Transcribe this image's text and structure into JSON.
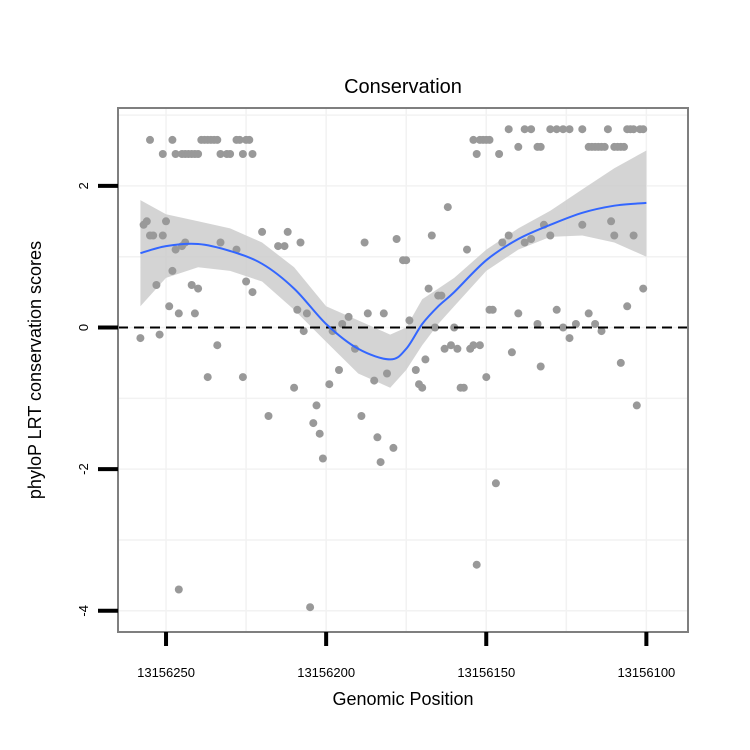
{
  "chart_data": {
    "type": "scatter",
    "title": "Conservation",
    "xlabel": "Genomic Position",
    "ylabel": "phyloP LRT conservation scores",
    "x_reversed": true,
    "xlim": [
      13156265,
      13156087
    ],
    "ylim": [
      -4.3,
      3.1
    ],
    "x_ticks": [
      13156250,
      13156200,
      13156150,
      13156100
    ],
    "x_tick_labels": [
      "13156250",
      "13156200",
      "13156150",
      "13156100"
    ],
    "y_ticks": [
      -4,
      -2,
      0,
      2
    ],
    "y_tick_labels": [
      "-4",
      "-2",
      "0",
      "2"
    ],
    "reference_line": {
      "y": 0,
      "style": "dashed",
      "color": "#000000"
    },
    "grid": true,
    "colors": {
      "points": "#999999",
      "smooth": "#3366ff",
      "band": "#cccccc",
      "panel_border": "#7f7f7f"
    },
    "smooth": {
      "x": [
        13156258,
        13156250,
        13156240,
        13156230,
        13156220,
        13156210,
        13156200,
        13156190,
        13156180,
        13156175,
        13156170,
        13156165,
        13156160,
        13156150,
        13156140,
        13156130,
        13156120,
        13156110,
        13156100
      ],
      "y": [
        1.05,
        1.15,
        1.18,
        1.08,
        0.9,
        0.55,
        0.05,
        -0.3,
        -0.45,
        -0.3,
        0.05,
        0.3,
        0.5,
        0.95,
        1.25,
        1.45,
        1.62,
        1.72,
        1.76
      ],
      "lower": [
        0.3,
        0.7,
        0.85,
        0.8,
        0.65,
        0.25,
        -0.2,
        -0.65,
        -0.85,
        -0.6,
        -0.25,
        0.05,
        0.3,
        0.8,
        1.1,
        1.28,
        1.3,
        1.2,
        1.0
      ],
      "upper": [
        1.8,
        1.6,
        1.5,
        1.4,
        1.2,
        0.85,
        0.3,
        0.1,
        -0.1,
        0.0,
        0.4,
        0.55,
        0.7,
        1.1,
        1.4,
        1.65,
        1.95,
        2.25,
        2.5
      ]
    },
    "points": [
      [
        13156257,
        1.45
      ],
      [
        13156256,
        1.5
      ],
      [
        13156255,
        1.3
      ],
      [
        13156254,
        1.3
      ],
      [
        13156251,
        1.3
      ],
      [
        13156253,
        0.6
      ],
      [
        13156252,
        -0.1
      ],
      [
        13156258,
        -0.15
      ],
      [
        13156250,
        1.5
      ],
      [
        13156249,
        0.3
      ],
      [
        13156248,
        0.8
      ],
      [
        13156247,
        1.1
      ],
      [
        13156246,
        0.2
      ],
      [
        13156245,
        1.15
      ],
      [
        13156244,
        1.2
      ],
      [
        13156242,
        0.6
      ],
      [
        13156241,
        0.2
      ],
      [
        13156240,
        0.55
      ],
      [
        13156237,
        -0.7
      ],
      [
        13156234,
        -0.25
      ],
      [
        13156233,
        1.2
      ],
      [
        13156228,
        1.1
      ],
      [
        13156226,
        -0.7
      ],
      [
        13156225,
        0.65
      ],
      [
        13156223,
        0.5
      ],
      [
        13156220,
        1.35
      ],
      [
        13156218,
        -1.25
      ],
      [
        13156215,
        1.15
      ],
      [
        13156213,
        1.15
      ],
      [
        13156212,
        1.35
      ],
      [
        13156210,
        -0.85
      ],
      [
        13156209,
        0.25
      ],
      [
        13156208,
        1.2
      ],
      [
        13156207,
        -0.05
      ],
      [
        13156206,
        0.2
      ],
      [
        13156204,
        -1.35
      ],
      [
        13156203,
        -1.1
      ],
      [
        13156202,
        -1.5
      ],
      [
        13156201,
        -1.85
      ],
      [
        13156199,
        -0.8
      ],
      [
        13156198,
        -0.05
      ],
      [
        13156196,
        -0.6
      ],
      [
        13156195,
        0.05
      ],
      [
        13156193,
        0.15
      ],
      [
        13156191,
        -0.3
      ],
      [
        13156189,
        -1.25
      ],
      [
        13156188,
        1.2
      ],
      [
        13156187,
        0.2
      ],
      [
        13156185,
        -0.75
      ],
      [
        13156184,
        -1.55
      ],
      [
        13156183,
        -1.9
      ],
      [
        13156182,
        0.2
      ],
      [
        13156181,
        -0.65
      ],
      [
        13156179,
        -1.7
      ],
      [
        13156178,
        1.25
      ],
      [
        13156176,
        0.95
      ],
      [
        13156175,
        0.95
      ],
      [
        13156174,
        0.1
      ],
      [
        13156172,
        -0.6
      ],
      [
        13156171,
        -0.8
      ],
      [
        13156170,
        -0.85
      ],
      [
        13156169,
        -0.45
      ],
      [
        13156168,
        0.55
      ],
      [
        13156167,
        1.3
      ],
      [
        13156166,
        0.0
      ],
      [
        13156165,
        0.45
      ],
      [
        13156164,
        0.45
      ],
      [
        13156163,
        -0.3
      ],
      [
        13156162,
        1.7
      ],
      [
        13156161,
        -0.25
      ],
      [
        13156160,
        0.0
      ],
      [
        13156159,
        -0.3
      ],
      [
        13156158,
        -0.85
      ],
      [
        13156157,
        -0.85
      ],
      [
        13156156,
        1.1
      ],
      [
        13156155,
        -0.3
      ],
      [
        13156154,
        -0.25
      ],
      [
        13156152,
        -0.25
      ],
      [
        13156150,
        -0.7
      ],
      [
        13156149,
        0.25
      ],
      [
        13156148,
        0.25
      ],
      [
        13156147,
        -2.2
      ],
      [
        13156145,
        1.2
      ],
      [
        13156143,
        1.3
      ],
      [
        13156142,
        -0.35
      ],
      [
        13156140,
        0.2
      ],
      [
        13156138,
        1.2
      ],
      [
        13156136,
        1.25
      ],
      [
        13156134,
        0.05
      ],
      [
        13156133,
        -0.55
      ],
      [
        13156132,
        1.45
      ],
      [
        13156130,
        1.3
      ],
      [
        13156128,
        0.25
      ],
      [
        13156126,
        0.0
      ],
      [
        13156124,
        -0.15
      ],
      [
        13156122,
        0.05
      ],
      [
        13156120,
        1.45
      ],
      [
        13156118,
        0.2
      ],
      [
        13156116,
        0.05
      ],
      [
        13156114,
        -0.05
      ],
      [
        13156111,
        1.5
      ],
      [
        13156110,
        1.3
      ],
      [
        13156108,
        -0.5
      ],
      [
        13156106,
        0.3
      ],
      [
        13156104,
        1.3
      ],
      [
        13156103,
        -1.1
      ],
      [
        13156101,
        0.55
      ],
      [
        13156246,
        -3.7
      ],
      [
        13156205,
        -3.95
      ],
      [
        13156153,
        -3.35
      ],
      [
        13156255,
        2.65
      ],
      [
        13156251,
        2.45
      ],
      [
        13156248,
        2.65
      ],
      [
        13156247,
        2.45
      ],
      [
        13156245,
        2.45
      ],
      [
        13156244,
        2.45
      ],
      [
        13156243,
        2.45
      ],
      [
        13156242,
        2.45
      ],
      [
        13156241,
        2.45
      ],
      [
        13156240,
        2.45
      ],
      [
        13156239,
        2.65
      ],
      [
        13156238,
        2.65
      ],
      [
        13156237,
        2.65
      ],
      [
        13156236,
        2.65
      ],
      [
        13156235,
        2.65
      ],
      [
        13156234,
        2.65
      ],
      [
        13156233,
        2.45
      ],
      [
        13156231,
        2.45
      ],
      [
        13156230,
        2.45
      ],
      [
        13156228,
        2.65
      ],
      [
        13156227,
        2.65
      ],
      [
        13156226,
        2.45
      ],
      [
        13156225,
        2.65
      ],
      [
        13156224,
        2.65
      ],
      [
        13156223,
        2.45
      ],
      [
        13156154,
        2.65
      ],
      [
        13156153,
        2.45
      ],
      [
        13156152,
        2.65
      ],
      [
        13156151,
        2.65
      ],
      [
        13156150,
        2.65
      ],
      [
        13156149,
        2.65
      ],
      [
        13156146,
        2.45
      ],
      [
        13156143,
        2.8
      ],
      [
        13156140,
        2.55
      ],
      [
        13156138,
        2.8
      ],
      [
        13156136,
        2.8
      ],
      [
        13156134,
        2.55
      ],
      [
        13156133,
        2.55
      ],
      [
        13156130,
        2.8
      ],
      [
        13156128,
        2.8
      ],
      [
        13156126,
        2.8
      ],
      [
        13156124,
        2.8
      ],
      [
        13156120,
        2.8
      ],
      [
        13156118,
        2.55
      ],
      [
        13156117,
        2.55
      ],
      [
        13156116,
        2.55
      ],
      [
        13156115,
        2.55
      ],
      [
        13156114,
        2.55
      ],
      [
        13156113,
        2.55
      ],
      [
        13156112,
        2.8
      ],
      [
        13156110,
        2.55
      ],
      [
        13156109,
        2.55
      ],
      [
        13156108,
        2.55
      ],
      [
        13156107,
        2.55
      ],
      [
        13156106,
        2.8
      ],
      [
        13156105,
        2.8
      ],
      [
        13156104,
        2.8
      ],
      [
        13156102,
        2.8
      ],
      [
        13156101,
        2.8
      ]
    ]
  }
}
